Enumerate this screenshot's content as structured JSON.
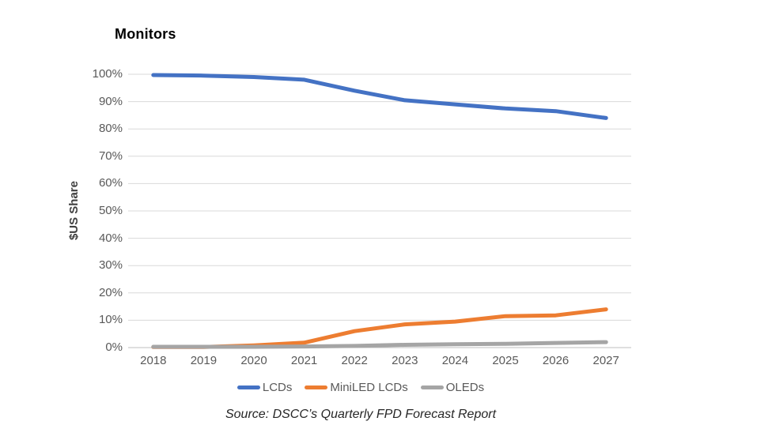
{
  "title": "Monitors",
  "source_note": "Source: DSCC’s Quarterly FPD Forecast Report",
  "colors": {
    "series_blue": "#4472C4",
    "series_orange": "#ED7D31",
    "series_gray": "#A5A5A5",
    "gridline": "#D9D9D9",
    "axis_line": "#BFBFBF",
    "tick_label": "#595959",
    "axis_title": "#404040",
    "title": "#000000"
  },
  "chart_data": {
    "type": "line",
    "title": "Monitors",
    "xlabel": "",
    "ylabel": "$US Share",
    "categories": [
      "2018",
      "2019",
      "2020",
      "2021",
      "2022",
      "2023",
      "2024",
      "2025",
      "2026",
      "2027"
    ],
    "series": [
      {
        "name": "LCDs",
        "color": "#4472C4",
        "values": [
          99.7,
          99.5,
          99.0,
          98.0,
          94.0,
          90.5,
          89.0,
          87.5,
          86.5,
          84.0
        ]
      },
      {
        "name": "MiniLED LCDs",
        "color": "#ED7D31",
        "values": [
          0.2,
          0.2,
          0.8,
          1.8,
          6.0,
          8.5,
          9.5,
          11.5,
          11.8,
          14.0
        ]
      },
      {
        "name": "OLEDs",
        "color": "#A5A5A5",
        "values": [
          0.3,
          0.3,
          0.3,
          0.4,
          0.6,
          1.0,
          1.2,
          1.4,
          1.7,
          2.0
        ]
      }
    ],
    "ylim": [
      0,
      100
    ],
    "ytick_step": 10,
    "ytick_labels": [
      "0%",
      "10%",
      "20%",
      "30%",
      "40%",
      "50%",
      "60%",
      "70%",
      "80%",
      "90%",
      "100%"
    ],
    "grid": true,
    "legend_position": "bottom",
    "source": "Source: DSCC’s Quarterly FPD Forecast Report"
  }
}
